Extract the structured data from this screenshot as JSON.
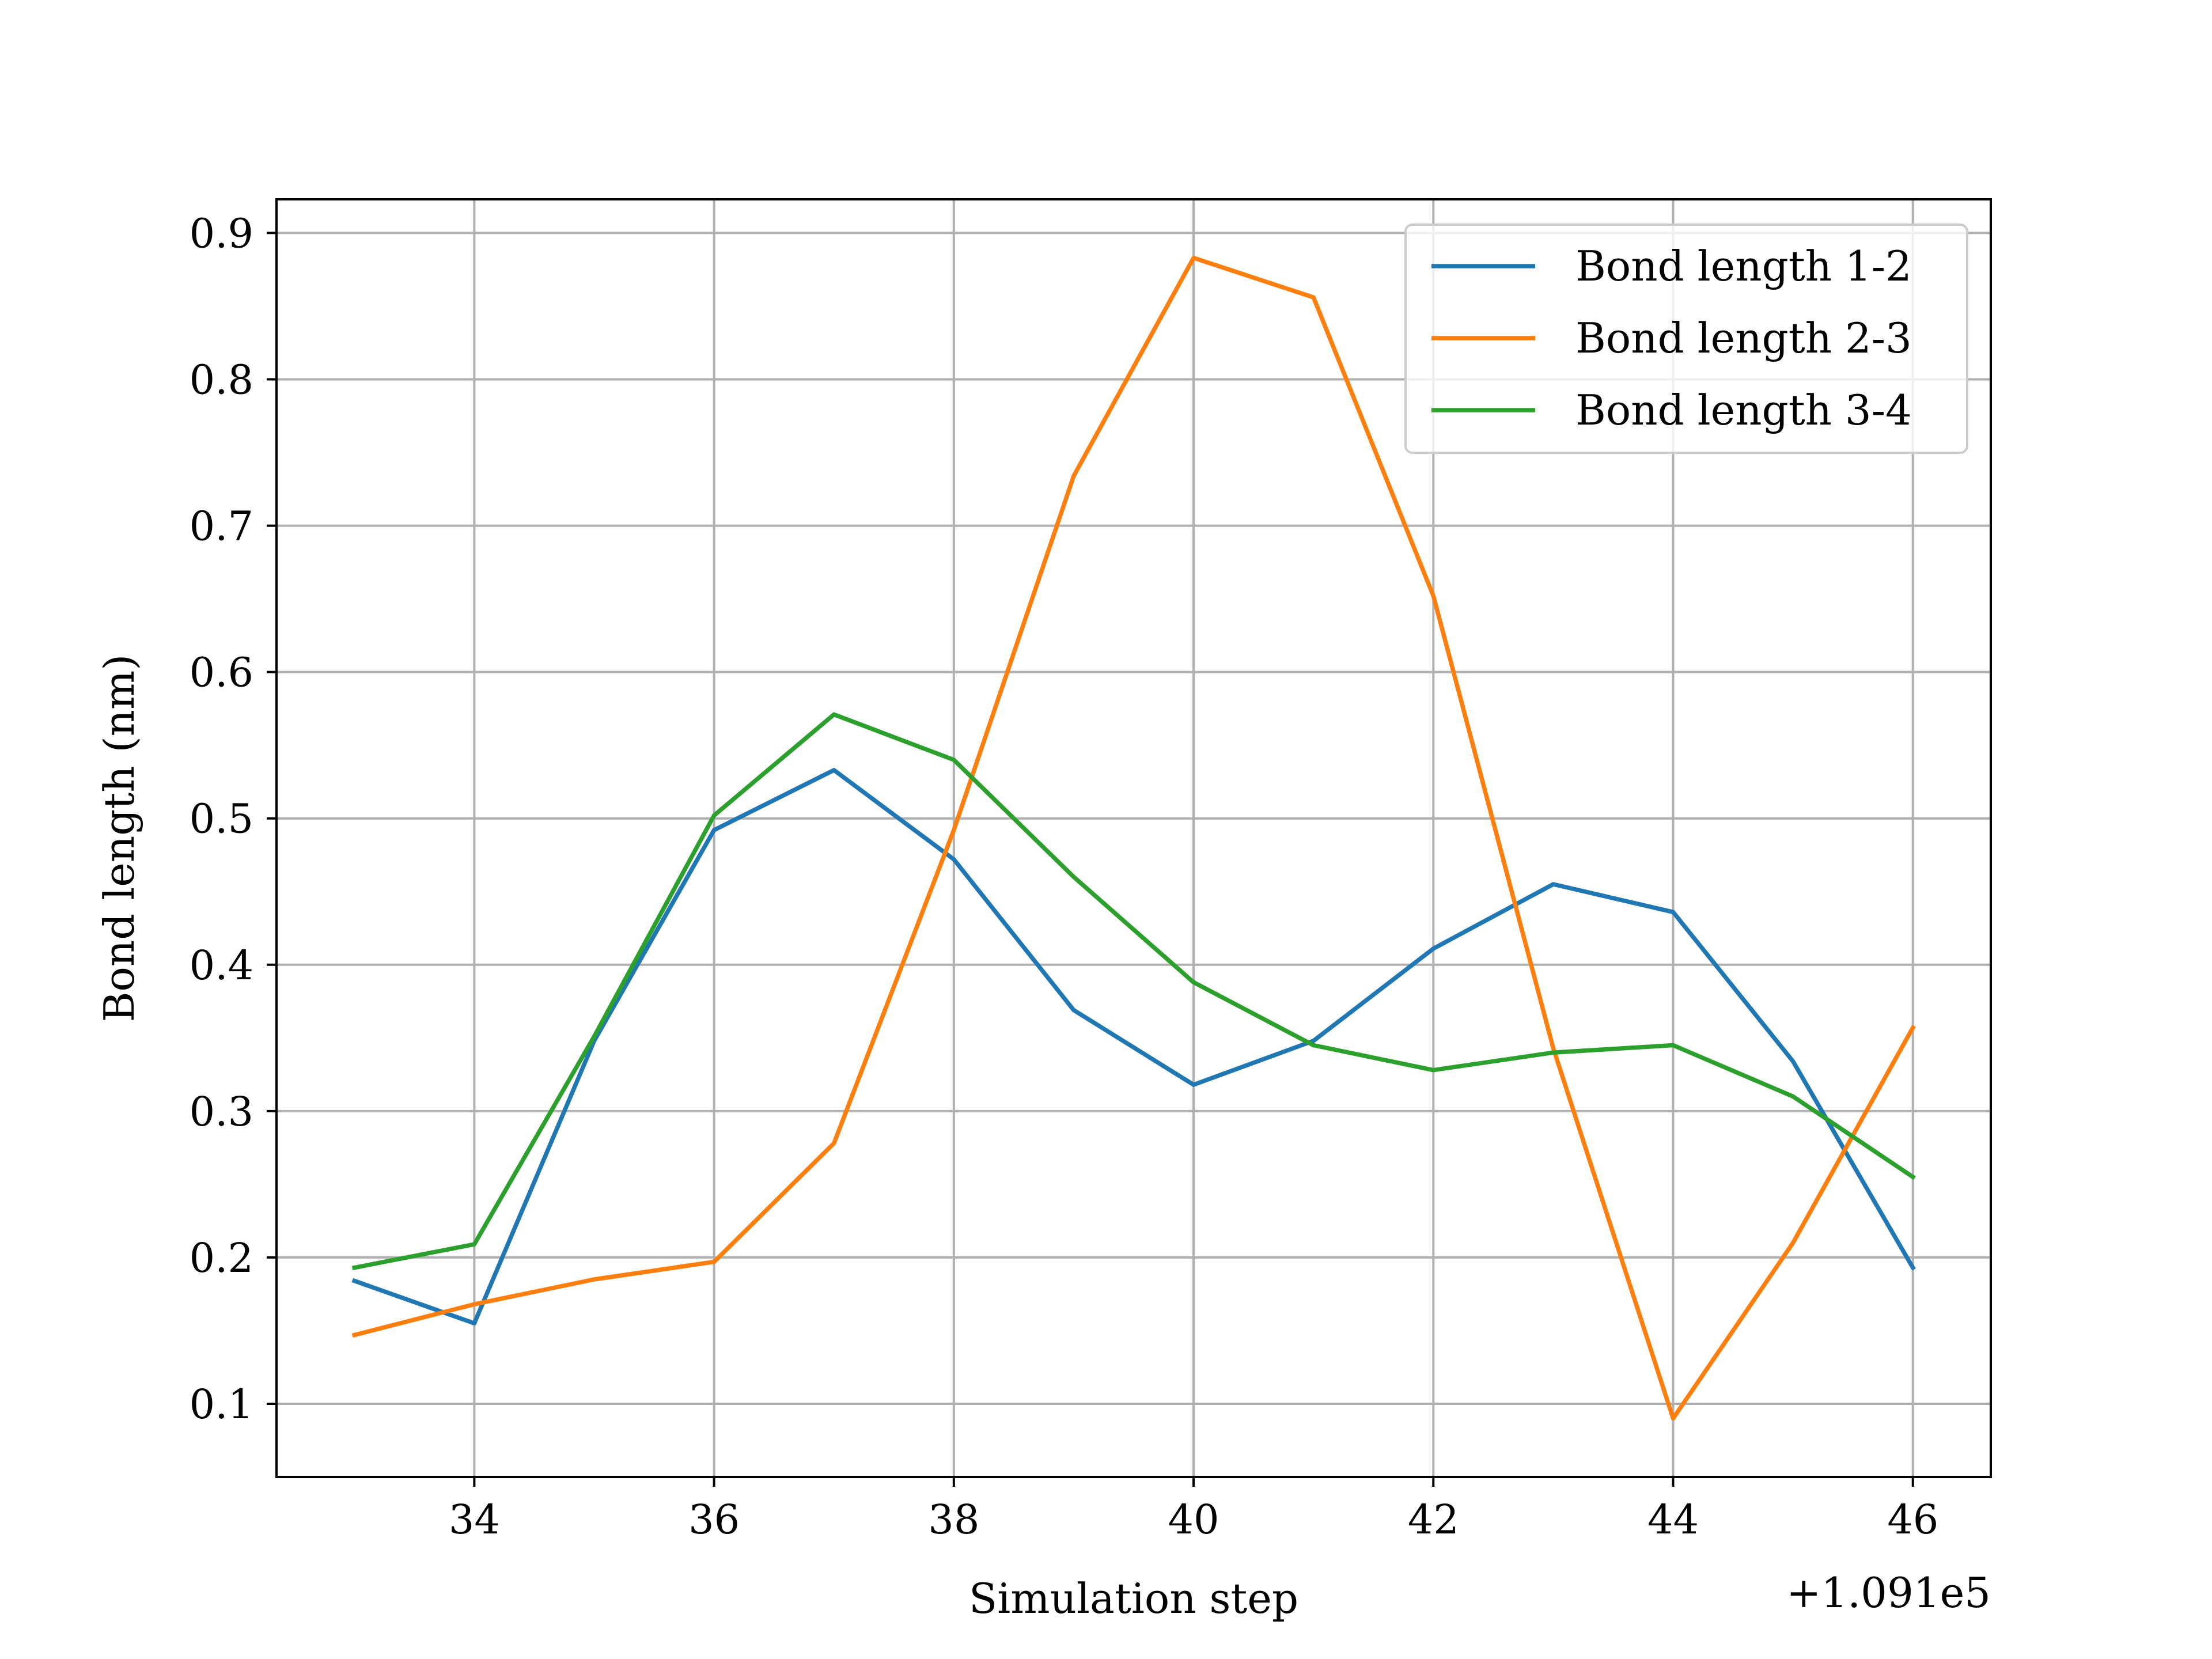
{
  "chart_data": {
    "type": "line",
    "xlabel": "Simulation step",
    "ylabel": "Bond length (nm)",
    "x_offset_label": "+1.091e5",
    "x": [
      33,
      34,
      35,
      36,
      37,
      38,
      39,
      40,
      41,
      42,
      43,
      44,
      45,
      46
    ],
    "xlim": [
      32.35,
      46.65
    ],
    "ylim": [
      0.05,
      0.923
    ],
    "xticks": [
      34,
      36,
      38,
      40,
      42,
      44,
      46
    ],
    "xtick_labels": [
      "34",
      "36",
      "38",
      "40",
      "42",
      "44",
      "46"
    ],
    "yticks": [
      0.1,
      0.2,
      0.3,
      0.4,
      0.5,
      0.6,
      0.7,
      0.8,
      0.9
    ],
    "ytick_labels": [
      "0.1",
      "0.2",
      "0.3",
      "0.4",
      "0.5",
      "0.6",
      "0.7",
      "0.8",
      "0.9"
    ],
    "grid": true,
    "legend_position": "top-right",
    "series": [
      {
        "name": "Bond length 1-2",
        "color": "#1f77b4",
        "values": [
          0.184,
          0.155,
          0.348,
          0.492,
          0.533,
          0.472,
          0.369,
          0.318,
          0.348,
          0.411,
          0.455,
          0.436,
          0.334,
          0.193
        ]
      },
      {
        "name": "Bond length 2-3",
        "color": "#ff7f0e",
        "values": [
          0.147,
          0.168,
          0.185,
          0.197,
          0.278,
          0.492,
          0.734,
          0.883,
          0.856,
          0.652,
          0.343,
          0.09,
          0.21,
          0.357
        ]
      },
      {
        "name": "Bond length 3-4",
        "color": "#2ca02c",
        "values": [
          0.193,
          0.209,
          0.351,
          0.502,
          0.571,
          0.54,
          0.46,
          0.388,
          0.345,
          0.328,
          0.34,
          0.345,
          0.31,
          0.255
        ]
      }
    ]
  }
}
